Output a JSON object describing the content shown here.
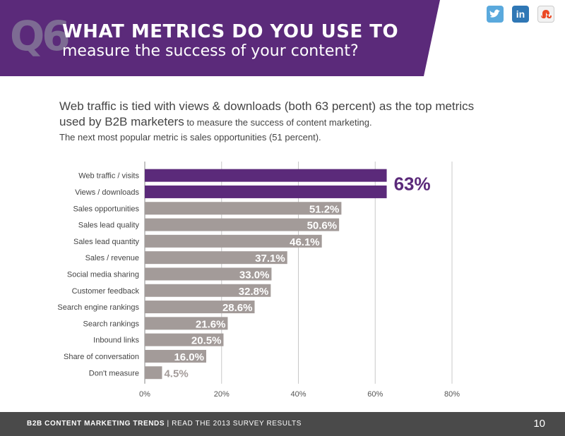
{
  "header": {
    "badge": "Q6",
    "title_line1": "WHAT METRICS DO YOU USE TO",
    "title_line2": "measure the success of your content?",
    "brand_color": "#5b2a7a"
  },
  "social": [
    {
      "name": "twitter-icon"
    },
    {
      "name": "linkedin-icon",
      "glyph": "in"
    },
    {
      "name": "stumbleupon-icon"
    }
  ],
  "intro": {
    "line1": "Web traffic is tied with views & downloads (both 63 percent) as the top metrics",
    "line2_main": "used by B2B marketers",
    "line2_small": " to measure the success of content marketing.",
    "line3": "The next most popular metric is sales opportunities (51 percent)."
  },
  "chart_data": {
    "type": "bar",
    "orientation": "horizontal",
    "categories": [
      "Web traffic / visits",
      "Views / downloads",
      "Sales opportunities",
      "Sales lead quality",
      "Sales lead quantity",
      "Sales / revenue",
      "Social media sharing",
      "Customer feedback",
      "Search engine rankings",
      "Search rankings",
      "Inbound links",
      "Share of conversation",
      "Don't measure"
    ],
    "values": [
      63,
      63,
      51.2,
      50.6,
      46.1,
      37.1,
      33.0,
      32.8,
      28.6,
      21.6,
      20.5,
      16.0,
      4.5
    ],
    "data_labels": [
      "",
      "",
      "51.2%",
      "50.6%",
      "46.1%",
      "37.1%",
      "33.0%",
      "32.8%",
      "28.6%",
      "21.6%",
      "20.5%",
      "16.0%",
      "4.5%"
    ],
    "highlight_label": "63%",
    "highlight_count": 2,
    "xlim": [
      0,
      80
    ],
    "xticks": [
      "0%",
      "20%",
      "40%",
      "60%",
      "80%"
    ],
    "grid": true,
    "colors": {
      "highlight": "#5b2a7a",
      "default": "#a39b99",
      "grid": "#c8c8c8"
    }
  },
  "footer": {
    "brand": "B2B CONTENT MARKETING TRENDS",
    "separator": "|",
    "link_text": "READ THE 2013 SURVEY RESULTS",
    "page": "10"
  }
}
